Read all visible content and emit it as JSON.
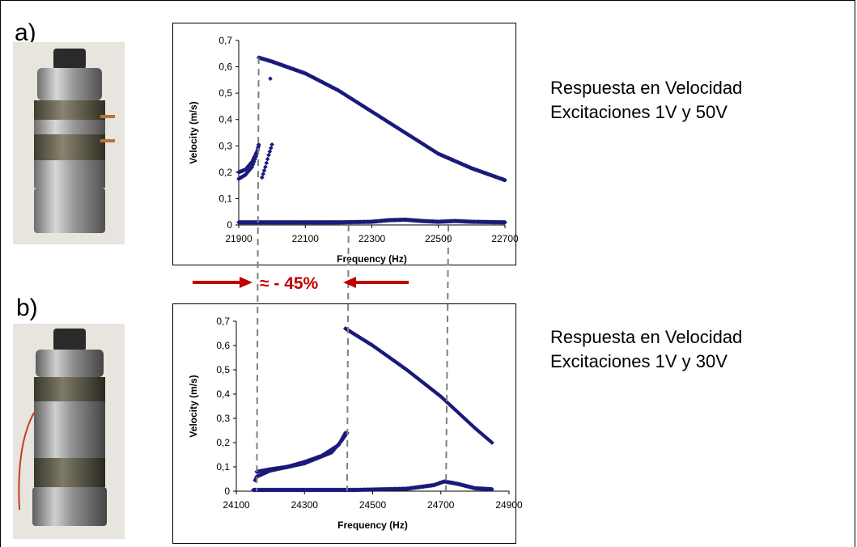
{
  "panels": [
    {
      "label": "a)",
      "caption_lines": [
        "Respuesta en Velocidad",
        "Excitaciones 1V y 50V"
      ]
    },
    {
      "label": "b)",
      "caption_lines": [
        "Respuesta en Velocidad",
        "Excitaciones 1V y 30V"
      ]
    }
  ],
  "annotation": {
    "text": "≈ - 45%",
    "color": "#c00000"
  },
  "colors": {
    "series": "#1a1a7a",
    "guide": "#808080",
    "frame": "#000000"
  },
  "chart_data": [
    {
      "type": "scatter",
      "title": "",
      "xlabel": "Frequency (Hz)",
      "ylabel": "Velocity (m/s)",
      "xlim": [
        21900,
        22700
      ],
      "ylim": [
        0,
        0.7
      ],
      "xticks": [
        21900,
        22100,
        22300,
        22500,
        22700
      ],
      "yticks": [
        0,
        0.1,
        0.2,
        0.3,
        0.4,
        0.5,
        0.6,
        0.7
      ],
      "ytick_labels": [
        "0",
        "0,1",
        "0,2",
        "0,3",
        "0,4",
        "0,5",
        "0,6",
        "0,7"
      ],
      "grid": false,
      "series": [
        {
          "points": [
            [
              21960,
              0.635
            ],
            [
              22000,
              0.62
            ],
            [
              22100,
              0.575
            ],
            [
              22200,
              0.51
            ],
            [
              22300,
              0.43
            ],
            [
              22400,
              0.35
            ],
            [
              22500,
              0.27
            ],
            [
              22600,
              0.215
            ],
            [
              22700,
              0.17
            ]
          ]
        },
        {
          "points": [
            [
              21900,
              0.175
            ],
            [
              21920,
              0.19
            ],
            [
              21940,
              0.22
            ],
            [
              21955,
              0.27
            ],
            [
              21960,
              0.3
            ]
          ]
        },
        {
          "points": [
            [
              21900,
              0.2
            ],
            [
              21920,
              0.21
            ],
            [
              21940,
              0.24
            ],
            [
              21955,
              0.28
            ],
            [
              21960,
              0.305
            ]
          ]
        },
        {
          "points": [
            [
              21970,
              0.18
            ],
            [
              21980,
              0.22
            ],
            [
              21990,
              0.265
            ],
            [
              22000,
              0.305
            ]
          ]
        },
        {
          "points": [
            [
              21900,
              0.01
            ],
            [
              22000,
              0.01
            ],
            [
              22200,
              0.01
            ],
            [
              22300,
              0.012
            ],
            [
              22350,
              0.018
            ],
            [
              22400,
              0.02
            ],
            [
              22450,
              0.015
            ],
            [
              22500,
              0.012
            ],
            [
              22550,
              0.015
            ],
            [
              22600,
              0.012
            ],
            [
              22700,
              0.01
            ]
          ]
        },
        {
          "points": [
            [
              21995,
              0.555
            ]
          ]
        }
      ]
    },
    {
      "type": "scatter",
      "title": "",
      "xlabel": "Frequency (Hz)",
      "ylabel": "Velocity (m/s)",
      "xlim": [
        24100,
        24900
      ],
      "ylim": [
        0,
        0.7
      ],
      "xticks": [
        24100,
        24300,
        24500,
        24700,
        24900
      ],
      "yticks": [
        0,
        0.1,
        0.2,
        0.3,
        0.4,
        0.5,
        0.6,
        0.7
      ],
      "ytick_labels": [
        "0",
        "0,1",
        "0,2",
        "0,3",
        "0,4",
        "0,5",
        "0,6",
        "0,7"
      ],
      "grid": false,
      "series": [
        {
          "points": [
            [
              24420,
              0.67
            ],
            [
              24500,
              0.6
            ],
            [
              24600,
              0.5
            ],
            [
              24700,
              0.39
            ],
            [
              24800,
              0.26
            ],
            [
              24850,
              0.2
            ]
          ]
        },
        {
          "points": [
            [
              24160,
              0.08
            ],
            [
              24200,
              0.09
            ],
            [
              24250,
              0.1
            ],
            [
              24300,
              0.12
            ],
            [
              24350,
              0.145
            ],
            [
              24400,
              0.19
            ],
            [
              24420,
              0.24
            ]
          ]
        },
        {
          "points": [
            [
              24155,
              0.045
            ],
            [
              24160,
              0.06
            ],
            [
              24200,
              0.085
            ],
            [
              24300,
              0.115
            ],
            [
              24380,
              0.16
            ],
            [
              24410,
              0.21
            ],
            [
              24425,
              0.24
            ]
          ]
        },
        {
          "points": [
            [
              24150,
              0.005
            ],
            [
              24300,
              0.005
            ],
            [
              24450,
              0.005
            ],
            [
              24600,
              0.01
            ],
            [
              24680,
              0.025
            ],
            [
              24710,
              0.04
            ],
            [
              24750,
              0.03
            ],
            [
              24800,
              0.012
            ],
            [
              24850,
              0.008
            ]
          ]
        }
      ]
    }
  ]
}
